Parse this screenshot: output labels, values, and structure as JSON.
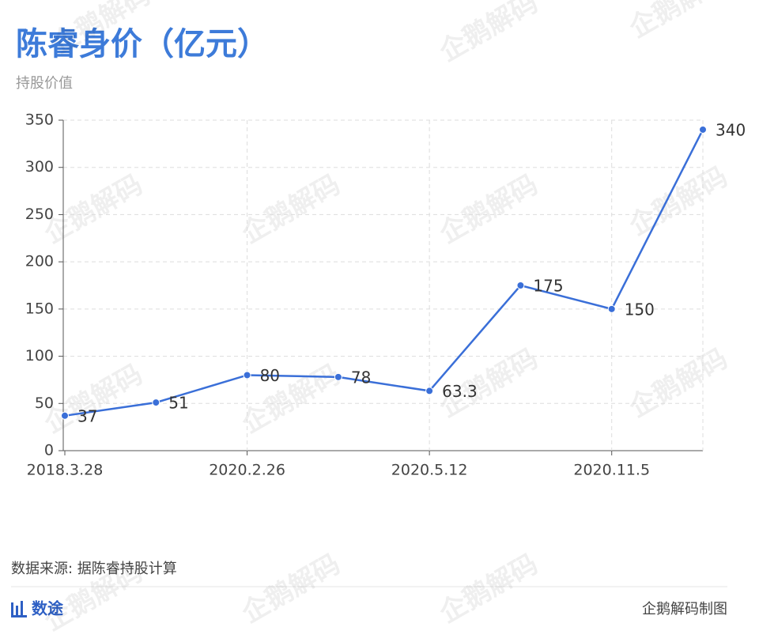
{
  "chart_data": {
    "type": "line",
    "title": "陈睿身价（亿元）",
    "subtitle": "持股价值",
    "categories": [
      "2018.3.28",
      null,
      "2020.2.26",
      null,
      "2020.5.12",
      null,
      "2020.11.5",
      null
    ],
    "series": [
      {
        "name": "持股价值",
        "color": "#3a6fd8",
        "values": [
          37,
          51,
          80,
          78,
          63.3,
          175,
          150,
          340
        ]
      }
    ],
    "ylim": [
      0,
      350
    ],
    "yticks": [
      0,
      50,
      100,
      150,
      200,
      250,
      300,
      350
    ],
    "grid": true,
    "source": "数据来源: 据陈睿持股计算",
    "brand": "数途",
    "credit": "企鹅解码制图",
    "watermark": "企鹅解码"
  }
}
